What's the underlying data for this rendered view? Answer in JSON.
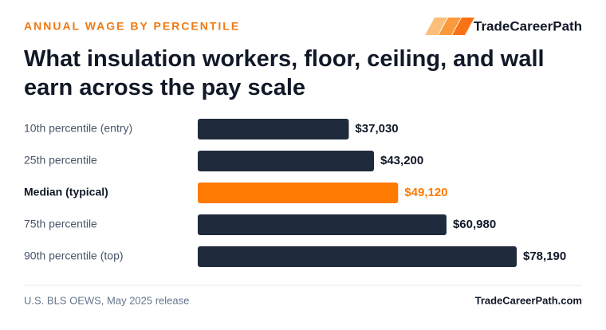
{
  "chart_data": {
    "type": "bar",
    "orientation": "horizontal",
    "kicker": "ANNUAL WAGE BY PERCENTILE",
    "brand": "TradeCareerPath",
    "title": "What insulation workers, floor, ceiling, and wall earn across the pay scale",
    "categories": [
      "10th percentile (entry)",
      "25th percentile",
      "Median (typical)",
      "75th percentile",
      "90th percentile (top)"
    ],
    "values": [
      37030,
      43200,
      49120,
      60980,
      78190
    ],
    "value_labels": [
      "$37,030",
      "$43,200",
      "$49,120",
      "$60,980",
      "$78,190"
    ],
    "color": "#1f2a3c",
    "highlight": 2,
    "highlight_color": "#ff7a00",
    "source": "U.S. BLS OEWS, May 2025 release",
    "site": "TradeCareerPath.com"
  }
}
